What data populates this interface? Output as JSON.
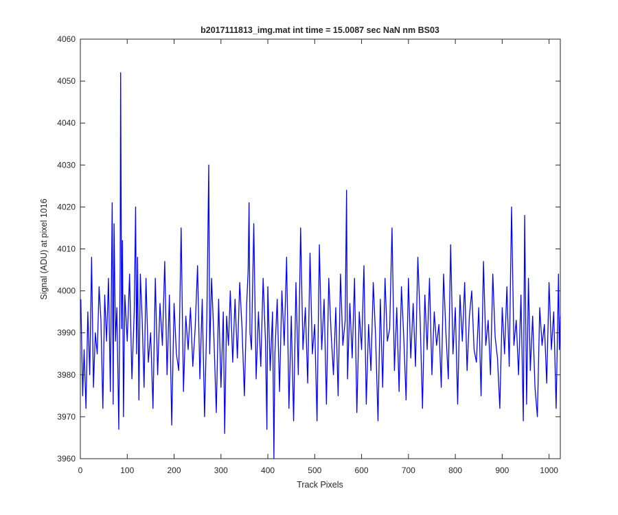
{
  "chart_data": {
    "type": "line",
    "title": "b2017111813_img.mat int time = 15.0087 sec  NaN nm BS03",
    "xlabel": "Track Pixels",
    "ylabel": "Signal (ADU) at pixel 1016",
    "xlim": [
      0,
      1024
    ],
    "ylim": [
      3960,
      4060
    ],
    "xticks": [
      0,
      100,
      200,
      300,
      400,
      500,
      600,
      700,
      800,
      900,
      1000
    ],
    "yticks": [
      3960,
      3970,
      3980,
      3990,
      4000,
      4010,
      4020,
      4030,
      4040,
      4050,
      4060
    ],
    "grid": false,
    "box": true,
    "line_color": "#0000ff",
    "series": [
      {
        "name": "",
        "x": [
          1,
          5,
          8,
          12,
          16,
          20,
          24,
          28,
          32,
          36,
          40,
          44,
          48,
          52,
          56,
          60,
          64,
          68,
          70,
          72,
          75,
          78,
          82,
          85,
          86,
          88,
          90,
          92,
          95,
          100,
          105,
          110,
          115,
          118,
          120,
          122,
          125,
          128,
          132,
          136,
          140,
          145,
          150,
          155,
          160,
          165,
          170,
          175,
          180,
          185,
          190,
          195,
          200,
          205,
          210,
          215,
          220,
          225,
          230,
          235,
          240,
          245,
          250,
          255,
          260,
          265,
          270,
          274,
          276,
          280,
          285,
          290,
          295,
          300,
          305,
          308,
          312,
          316,
          320,
          325,
          330,
          335,
          340,
          345,
          350,
          355,
          358,
          360,
          362,
          365,
          370,
          375,
          380,
          385,
          390,
          395,
          398,
          400,
          405,
          410,
          413,
          415,
          420,
          425,
          430,
          435,
          440,
          445,
          450,
          455,
          460,
          465,
          470,
          475,
          480,
          485,
          490,
          495,
          500,
          505,
          510,
          515,
          520,
          525,
          530,
          535,
          540,
          545,
          550,
          555,
          560,
          565,
          568,
          570,
          575,
          580,
          585,
          590,
          595,
          600,
          605,
          610,
          615,
          620,
          625,
          630,
          635,
          640,
          645,
          650,
          655,
          660,
          665,
          670,
          675,
          680,
          685,
          690,
          695,
          700,
          705,
          710,
          715,
          720,
          725,
          730,
          735,
          740,
          745,
          750,
          755,
          760,
          765,
          770,
          775,
          780,
          785,
          790,
          795,
          800,
          805,
          810,
          815,
          820,
          825,
          830,
          835,
          840,
          845,
          850,
          855,
          860,
          865,
          870,
          875,
          880,
          885,
          890,
          895,
          900,
          905,
          910,
          915,
          920,
          925,
          930,
          935,
          940,
          945,
          948,
          952,
          956,
          960,
          965,
          970,
          975,
          980,
          985,
          990,
          995,
          1000,
          1005,
          1010,
          1015,
          1018,
          1020,
          1022,
          1024
        ],
        "y": [
          3998,
          3975,
          3986,
          3972,
          3995,
          3980,
          4008,
          3977,
          3990,
          3985,
          4001,
          3993,
          3972,
          3999,
          3988,
          4003,
          3976,
          4021,
          3973,
          4016,
          3988,
          3996,
          3967,
          4006,
          4052,
          3991,
          4012,
          3970,
          3999,
          3988,
          4004,
          3979,
          3995,
          4020,
          3985,
          4008,
          3974,
          4004,
          3993,
          3977,
          4003,
          3983,
          3990,
          3972,
          4003,
          3980,
          3997,
          3987,
          4007,
          3980,
          3999,
          3968,
          3997,
          3985,
          3981,
          4015,
          3976,
          3994,
          3986,
          3996,
          3982,
          3991,
          4006,
          3979,
          3998,
          3970,
          3994,
          4030,
          3985,
          4003,
          3989,
          3971,
          3998,
          3977,
          3995,
          3966,
          3994,
          3987,
          4000,
          3983,
          3998,
          3984,
          4002,
          3991,
          3975,
          3997,
          4005,
          4021,
          3990,
          3986,
          4016,
          3979,
          3995,
          3982,
          4003,
          3988,
          3967,
          4001,
          3981,
          3995,
          3960,
          3985,
          3998,
          3976,
          4000,
          3987,
          4008,
          3972,
          3994,
          3969,
          4002,
          3980,
          4015,
          3986,
          3996,
          3978,
          4009,
          3985,
          3992,
          3969,
          4011,
          3986,
          3998,
          3973,
          4003,
          3990,
          3980,
          3996,
          3975,
          4004,
          3987,
          3993,
          4024,
          3979,
          3997,
          3984,
          4003,
          3971,
          3995,
          3986,
          4006,
          3973,
          3992,
          3981,
          4002,
          3989,
          3969,
          3998,
          3977,
          4003,
          3988,
          3991,
          4015,
          3981,
          3996,
          3976,
          4001,
          3989,
          3974,
          4003,
          3984,
          3997,
          3982,
          4008,
          3993,
          3972,
          3999,
          3986,
          4003,
          3980,
          3995,
          3987,
          3992,
          3977,
          4004,
          3990,
          3979,
          4011,
          3985,
          3996,
          3973,
          3999,
          3988,
          4002,
          3981,
          3994,
          4000,
          3986,
          3983,
          3996,
          3975,
          4007,
          3987,
          3993,
          3980,
          4004,
          3989,
          3984,
          3972,
          3996,
          3985,
          4001,
          3982,
          4020,
          3987,
          3993,
          3980,
          3999,
          3969,
          4018,
          3973,
          4003,
          3981,
          3994,
          3977,
          3970,
          3996,
          3987,
          3992,
          3978,
          4002,
          3986,
          3995,
          3972,
          3990,
          4004,
          3986,
          3994
        ]
      }
    ]
  }
}
